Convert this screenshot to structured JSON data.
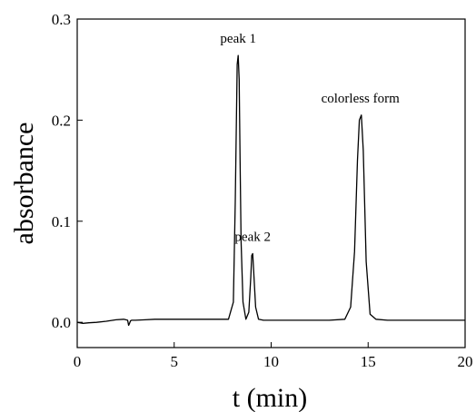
{
  "chart_data": {
    "type": "line",
    "title": "",
    "xlabel": "t (min)",
    "ylabel": "absorbance",
    "xlim": [
      0,
      20
    ],
    "ylim": [
      -0.025,
      0.3
    ],
    "x_ticks": [
      0,
      5,
      10,
      15,
      20
    ],
    "x_tick_labels": [
      "0",
      "5",
      "10",
      "15",
      "20"
    ],
    "y_ticks": [
      0.0,
      0.1,
      0.2,
      0.3
    ],
    "y_tick_labels": [
      "0.0",
      "0.1",
      "0.2",
      "0.3"
    ],
    "grid": false,
    "legend": "none",
    "series": [
      {
        "x": [
          0,
          0.3,
          0.6,
          1.0,
          1.5,
          2.0,
          2.4,
          2.6,
          2.65,
          2.7,
          2.75,
          2.8,
          3.0,
          3.5,
          4.0,
          5.0,
          6.0,
          7.0,
          7.8,
          8.05,
          8.15,
          8.25,
          8.3,
          8.35,
          8.4,
          8.45,
          8.55,
          8.7,
          8.85,
          8.95,
          9.0,
          9.05,
          9.1,
          9.2,
          9.35,
          9.6,
          10.0,
          11.0,
          12.0,
          13.0,
          13.8,
          14.1,
          14.3,
          14.45,
          14.55,
          14.65,
          14.75,
          14.9,
          15.1,
          15.4,
          16.0,
          17.0,
          18.0,
          19.0,
          20.0
        ],
        "y": [
          0.0,
          -0.001,
          -0.0005,
          0.0,
          0.001,
          0.0025,
          0.003,
          0.002,
          -0.003,
          -0.001,
          0.0015,
          0.002,
          0.002,
          0.0025,
          0.003,
          0.003,
          0.003,
          0.003,
          0.003,
          0.02,
          0.12,
          0.255,
          0.264,
          0.24,
          0.16,
          0.08,
          0.02,
          0.003,
          0.01,
          0.045,
          0.066,
          0.068,
          0.05,
          0.015,
          0.003,
          0.002,
          0.002,
          0.002,
          0.002,
          0.002,
          0.003,
          0.015,
          0.07,
          0.16,
          0.2,
          0.205,
          0.17,
          0.06,
          0.008,
          0.003,
          0.002,
          0.002,
          0.002,
          0.002,
          0.002
        ]
      }
    ],
    "annotations": [
      {
        "text": "peak 1",
        "x": 8.3,
        "y": 0.264
      },
      {
        "text": "peak 2",
        "x": 9.05,
        "y": 0.068
      },
      {
        "text": "colorless form",
        "x": 14.6,
        "y": 0.205
      }
    ]
  }
}
